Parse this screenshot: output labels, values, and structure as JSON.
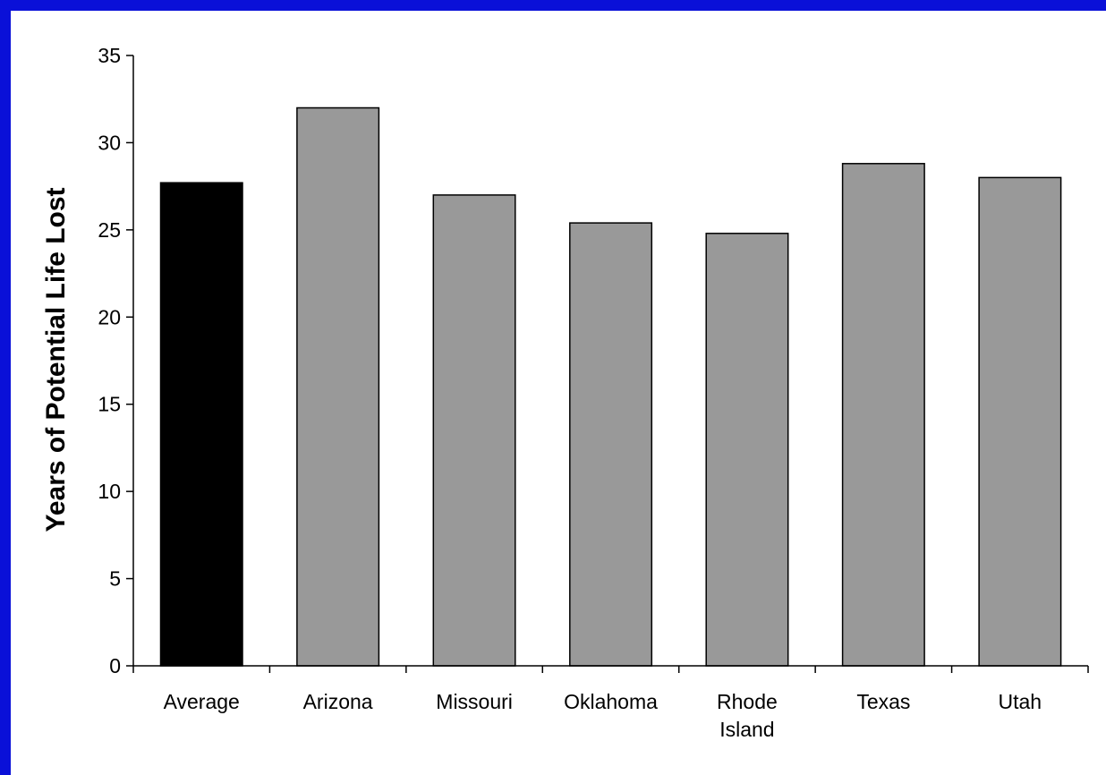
{
  "chart_data": {
    "type": "bar",
    "title": "",
    "xlabel": "",
    "ylabel": "Years of Potential Life Lost",
    "categories": [
      [
        "Average"
      ],
      [
        "Arizona"
      ],
      [
        "Missouri"
      ],
      [
        "Oklahoma"
      ],
      [
        "Rhode",
        "Island"
      ],
      [
        "Texas"
      ],
      [
        "Utah"
      ]
    ],
    "values": [
      27.7,
      32.0,
      27.0,
      25.4,
      24.8,
      28.8,
      28.0
    ],
    "bar_colors": [
      "#000000",
      "#999999",
      "#999999",
      "#999999",
      "#999999",
      "#999999",
      "#999999"
    ],
    "ylim": [
      0,
      35
    ],
    "yticks": [
      0,
      5,
      10,
      15,
      20,
      25,
      30,
      35
    ],
    "grid": false,
    "legend": "none"
  }
}
